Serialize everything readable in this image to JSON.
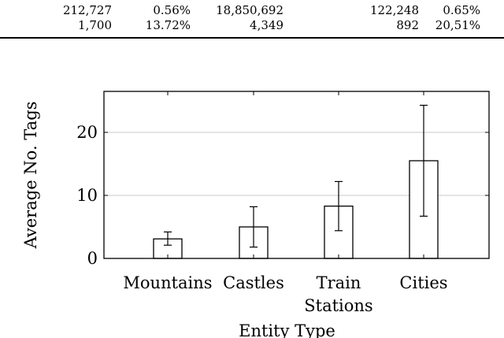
{
  "table": {
    "rows": [
      [
        "212,727",
        "0.56%",
        "18,850,692",
        "122,248",
        "0.65%"
      ],
      [
        "1,700",
        "13.72%",
        "4,349",
        "892",
        "20,51%"
      ]
    ]
  },
  "chart_data": {
    "type": "bar",
    "categories": [
      "Mountains",
      "Castles",
      "Train Stations",
      "Cities"
    ],
    "category_lines": [
      [
        "Mountains"
      ],
      [
        "Castles"
      ],
      [
        "Train",
        "Stations"
      ],
      [
        "Cities"
      ]
    ],
    "values": [
      3.1,
      5.0,
      8.3,
      15.5
    ],
    "error_low": [
      2.1,
      1.8,
      4.4,
      6.7
    ],
    "error_high": [
      4.2,
      8.2,
      12.2,
      24.3
    ],
    "title": "",
    "xlabel": "Entity Type",
    "ylabel": "Average No. Tags",
    "ylim": [
      0,
      26.5
    ],
    "yticks": [
      0,
      10,
      20
    ],
    "grid": "horizontal",
    "bar_fill": "#ffffff",
    "bar_stroke": "#000000"
  }
}
